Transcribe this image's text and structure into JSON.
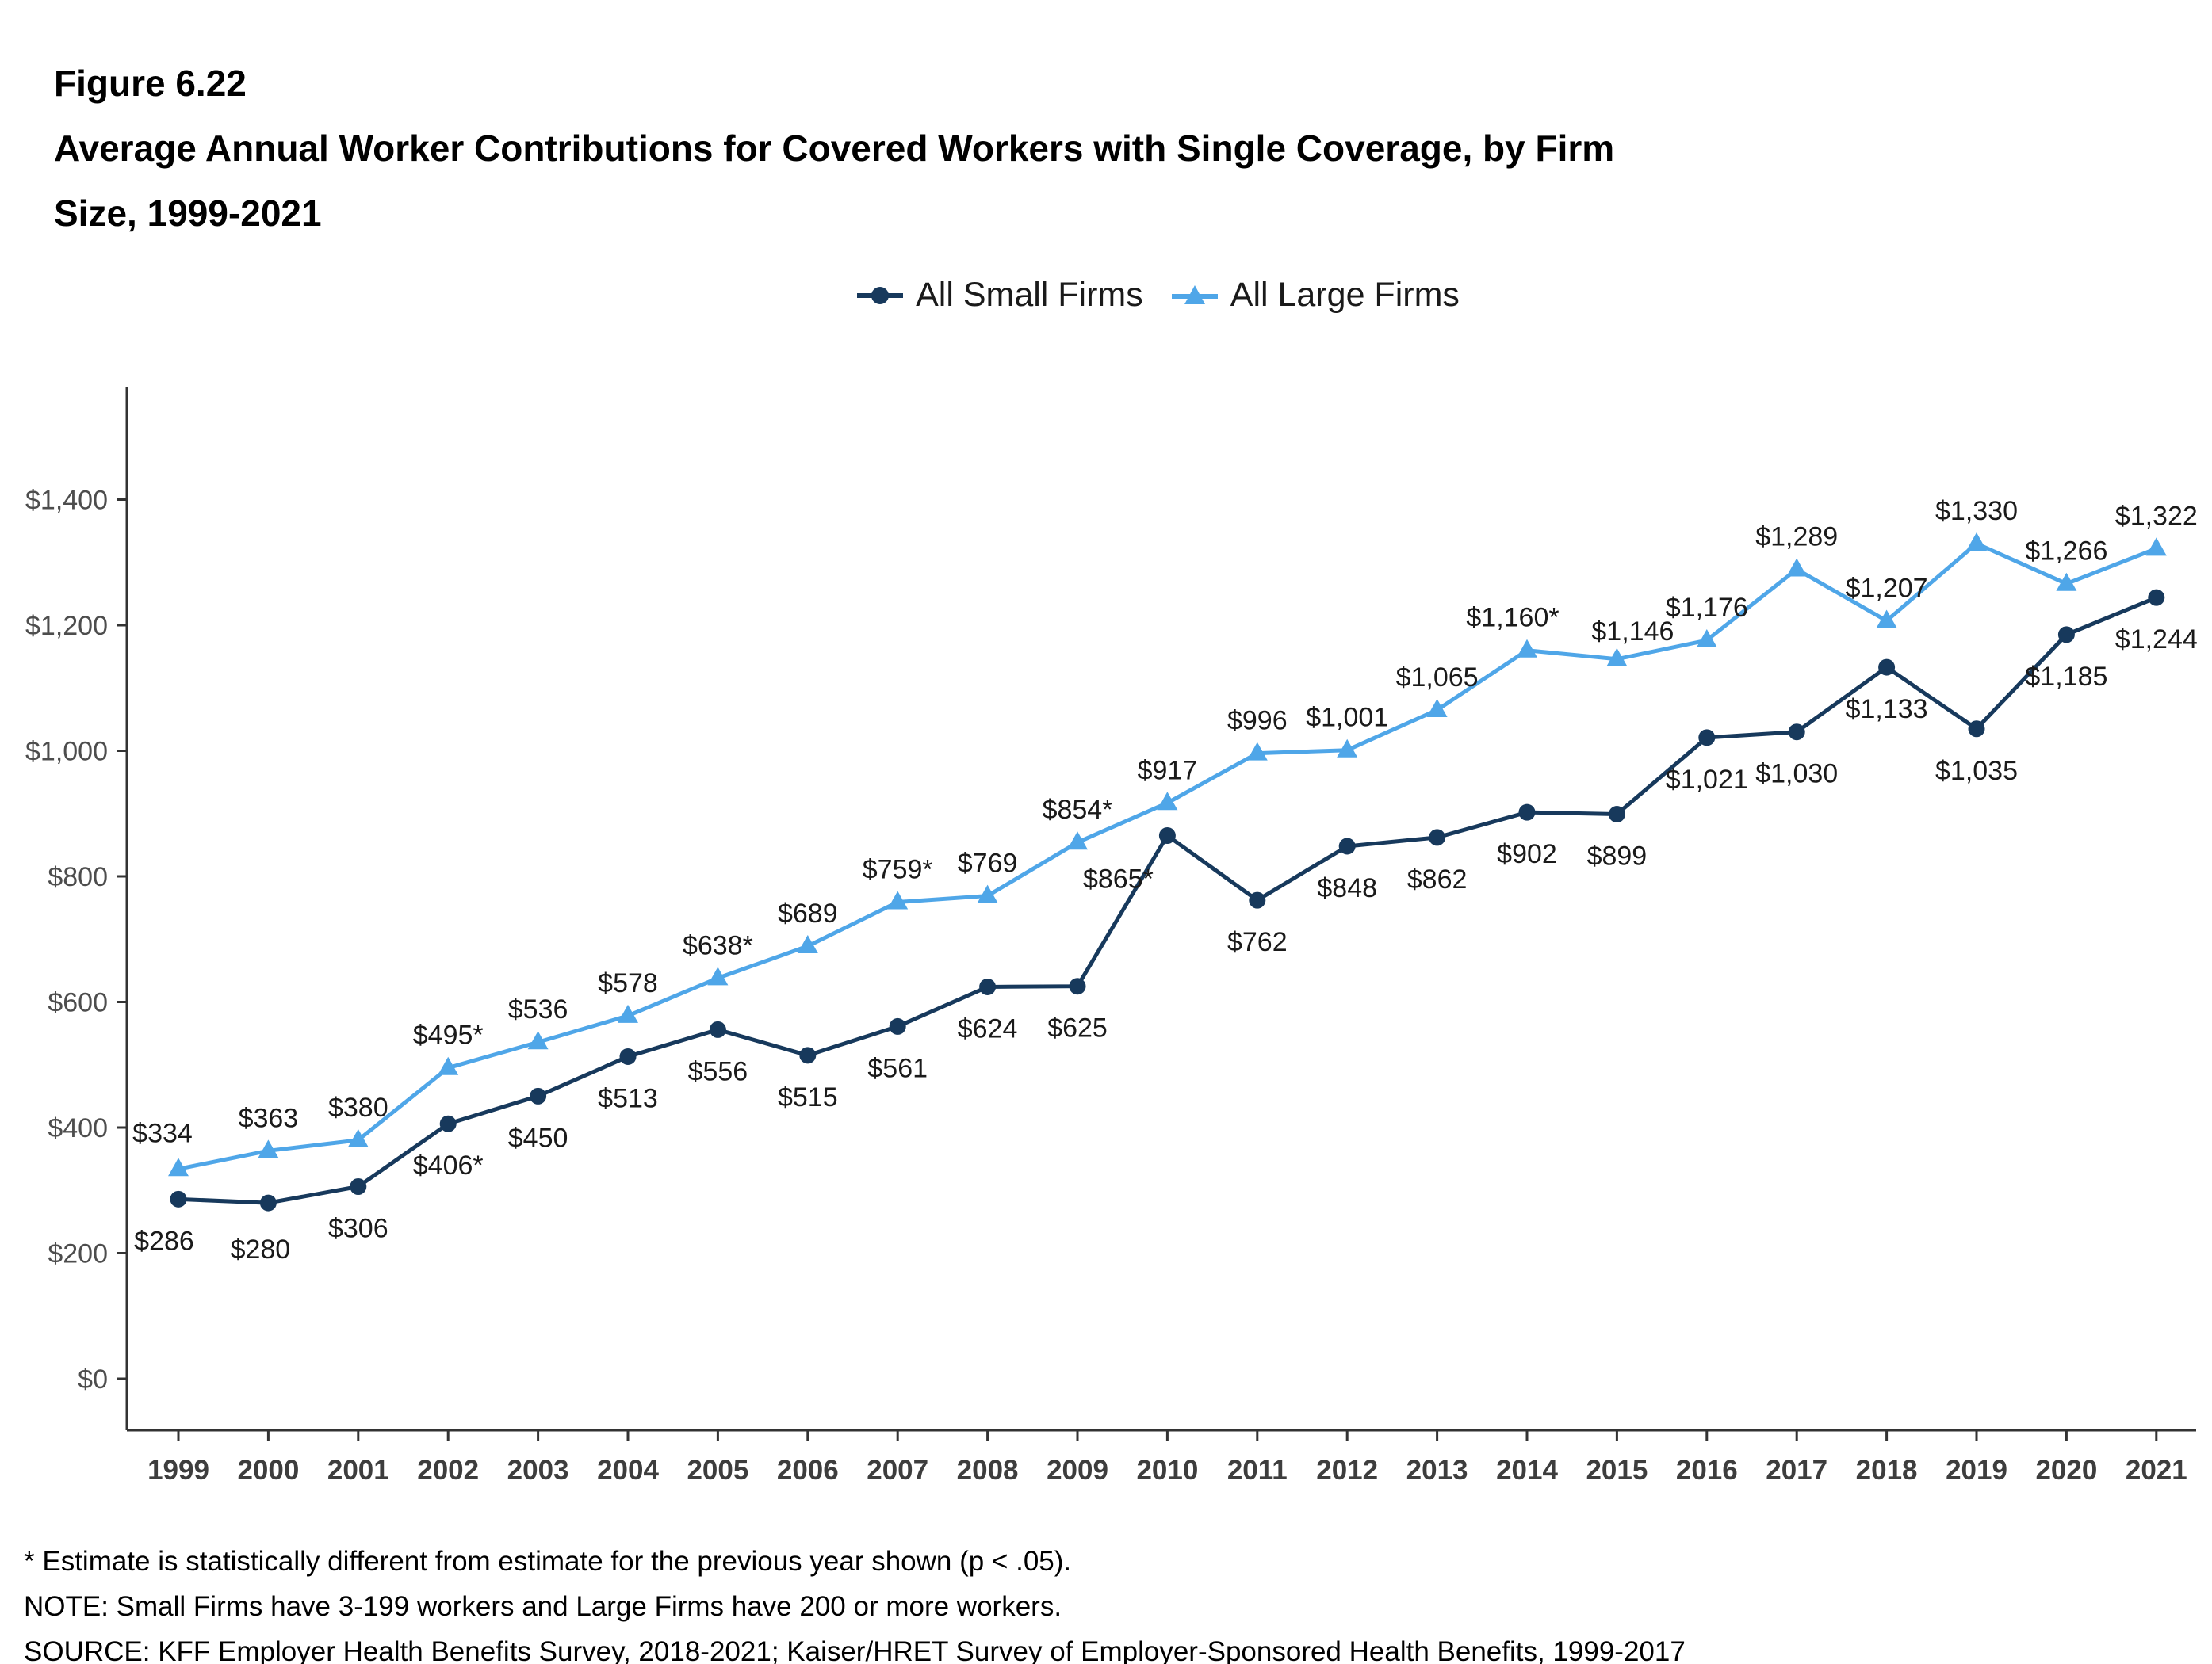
{
  "figure": {
    "number": "Figure 6.22",
    "title_line1": "Average Annual Worker Contributions for Covered Workers with Single Coverage, by Firm",
    "title_line2": "Size, 1999-2021"
  },
  "legend": {
    "small": "All Small Firms",
    "large": "All Large Firms"
  },
  "colors": {
    "small_firms": "#17395C",
    "large_firms": "#4FA6E8",
    "axis": "#333333",
    "y_tick_label": "#4D4D4D",
    "x_tick_label": "#3D3D3D",
    "data_label": "#1A1A1A"
  },
  "footnotes": [
    "* Estimate is statistically different from estimate for the previous year shown (p < .05).",
    "NOTE: Small Firms have 3-199 workers and Large Firms have 200 or more workers.",
    "SOURCE: KFF Employer Health Benefits Survey, 2018-2021; Kaiser/HRET Survey of Employer-Sponsored Health Benefits, 1999-2017"
  ],
  "chart_data": {
    "type": "line",
    "title": "Average Annual Worker Contributions for Covered Workers with Single Coverage, by Firm Size, 1999-2021",
    "xlabel": "",
    "ylabel": "",
    "x": [
      1999,
      2000,
      2001,
      2002,
      2003,
      2004,
      2005,
      2006,
      2007,
      2008,
      2009,
      2010,
      2011,
      2012,
      2013,
      2014,
      2015,
      2016,
      2017,
      2018,
      2019,
      2020,
      2021
    ],
    "ylim": [
      0,
      1400
    ],
    "ytick_interval": 200,
    "ytick_labels": [
      "$0",
      "$200",
      "$400",
      "$600",
      "$800",
      "$1,000",
      "$1,200",
      "$1,400"
    ],
    "grid": false,
    "legend_position": "top",
    "series": [
      {
        "name": "All Small Firms",
        "marker": "circle",
        "color": "#17395C",
        "values": [
          286,
          280,
          306,
          406,
          450,
          513,
          556,
          515,
          561,
          624,
          625,
          865,
          762,
          848,
          862,
          902,
          899,
          1021,
          1030,
          1133,
          1035,
          1185,
          1244
        ],
        "labels": [
          "$286",
          "$280",
          "$306",
          "$406*",
          "$450",
          "$513",
          "$556",
          "$515",
          "$561",
          "$624",
          "$625",
          "$865*",
          "$762",
          "$848",
          "$862",
          "$902",
          "$899",
          "$1,021",
          "$1,030",
          "$1,133",
          "$1,035",
          "$1,185",
          "$1,244"
        ]
      },
      {
        "name": "All Large Firms",
        "marker": "triangle",
        "color": "#4FA6E8",
        "values": [
          334,
          363,
          380,
          495,
          536,
          578,
          638,
          689,
          759,
          769,
          854,
          917,
          996,
          1001,
          1065,
          1160,
          1146,
          1176,
          1289,
          1207,
          1330,
          1266,
          1322
        ],
        "labels": [
          "$334",
          "$363",
          "$380",
          "$495*",
          "$536",
          "$578",
          "$638*",
          "$689",
          "$759*",
          "$769",
          "$854*",
          "$917",
          "$996",
          "$1,001",
          "$1,065",
          "$1,160*",
          "$1,146",
          "$1,176",
          "$1,289",
          "$1,207",
          "$1,330",
          "$1,266",
          "$1,322"
        ]
      }
    ]
  }
}
